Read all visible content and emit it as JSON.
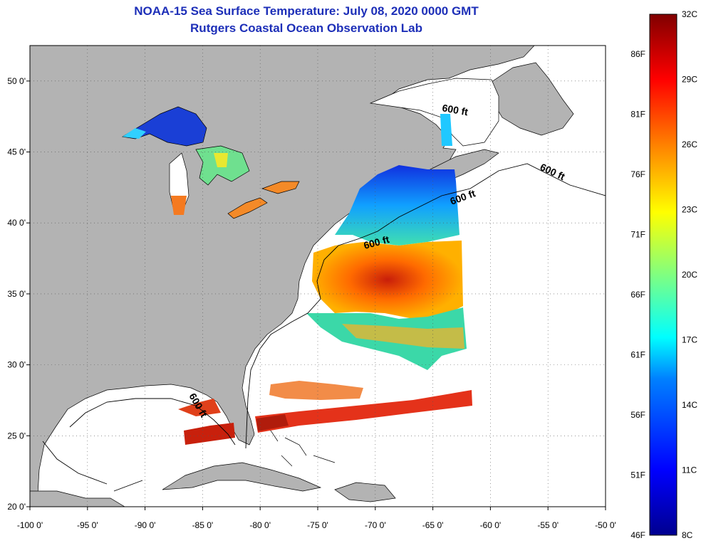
{
  "header": {
    "title": "NOAA-15 Sea Surface Temperature:  July 08, 2020 0000 GMT",
    "subtitle": "Rutgers Coastal Ocean Observation Lab"
  },
  "map": {
    "lon_range": [
      -100,
      -50
    ],
    "lat_range": [
      20,
      52.5
    ],
    "x_ticks": [
      "-100 0'",
      "-95 0'",
      "-90 0'",
      "-85 0'",
      "-80 0'",
      "-75 0'",
      "-70 0'",
      "-65 0'",
      "-60 0'",
      "-55 0'",
      "-50 0'"
    ],
    "y_ticks": [
      "50 0'",
      "45 0'",
      "40 0'",
      "35 0'",
      "30 0'",
      "25 0'",
      "20 0'"
    ],
    "contour_labels": [
      "600 ft",
      "600 ft",
      "600 ft",
      "600 ft",
      "600 ft"
    ],
    "colors": {
      "land": "#b3b3b3",
      "ocean_nodata": "#ffffff",
      "coast": "#000000"
    }
  },
  "colorbar": {
    "celsius_labels": [
      "32C",
      "29C",
      "26C",
      "23C",
      "20C",
      "17C",
      "14C",
      "11C",
      "8C"
    ],
    "fahrenheit_labels": [
      "86F",
      "81F",
      "76F",
      "71F",
      "66F",
      "61F",
      "56F",
      "51F",
      "46F"
    ],
    "range_c": [
      8,
      32
    ],
    "colors": [
      "#00008f",
      "#0000ff",
      "#0080ff",
      "#00ffff",
      "#80ff80",
      "#ffff00",
      "#ff8000",
      "#ff0000",
      "#800000"
    ]
  }
}
